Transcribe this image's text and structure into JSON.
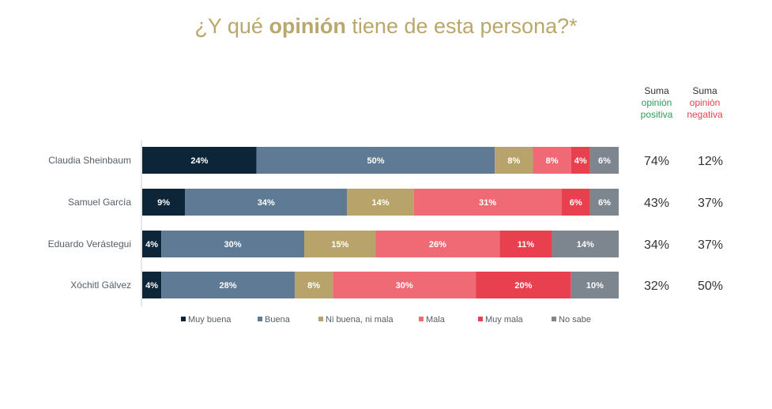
{
  "title": {
    "prefix": "¿Y qué ",
    "emphasis": "opinión",
    "suffix": " tiene de esta persona?*"
  },
  "headers": {
    "positive": {
      "label": "Suma",
      "value": "opinión positiva"
    },
    "negative": {
      "label": "Suma",
      "value": "opinión negativa"
    }
  },
  "colors": {
    "Muy buena": "#0c2539",
    "Buena": "#5e7a94",
    "Ni buena, ni mala": "#b8a36b",
    "Mala": "#f06a75",
    "Muy mala": "#e8404f",
    "No sabe": "#7d858e",
    "positive_text": "#2e9b57",
    "negative_text": "#e8404f",
    "title": "#b9a76b"
  },
  "chart_data": {
    "type": "bar",
    "orientation": "horizontal",
    "stacked": true,
    "categories": [
      "Claudia Sheinbaum",
      "Samuel García",
      "Eduardo Verástegui",
      "Xóchitl Gálvez"
    ],
    "series": [
      {
        "name": "Muy buena",
        "values": [
          24,
          9,
          4,
          4
        ]
      },
      {
        "name": "Buena",
        "values": [
          50,
          34,
          30,
          28
        ]
      },
      {
        "name": "Ni buena, ni mala",
        "values": [
          8,
          14,
          15,
          8
        ]
      },
      {
        "name": "Mala",
        "values": [
          8,
          31,
          26,
          30
        ]
      },
      {
        "name": "Muy mala",
        "values": [
          4,
          6,
          11,
          20
        ]
      },
      {
        "name": "No sabe",
        "values": [
          6,
          6,
          14,
          10
        ]
      }
    ],
    "suma_positiva": [
      "74%",
      "43%",
      "34%",
      "32%"
    ],
    "suma_negativa": [
      "12%",
      "37%",
      "37%",
      "50%"
    ],
    "xlim": [
      0,
      100
    ],
    "legend": "bottom"
  }
}
